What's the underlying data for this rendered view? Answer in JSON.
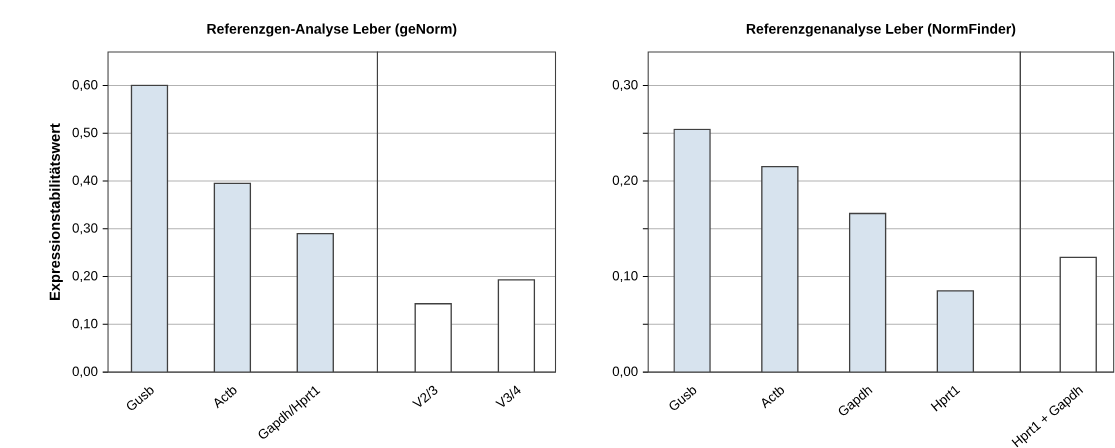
{
  "chart_data": [
    {
      "type": "bar",
      "title": "Referenzgen-Analyse Leber (geNorm)",
      "ylabel": "Expressionstabilitätswert",
      "categories": [
        "Gusb",
        "Actb",
        "Gapdh/Hprt1"
      ],
      "values": [
        0.6,
        0.395,
        0.29
      ],
      "colors": [
        "#d7e3ee",
        "#d7e3ee",
        "#d7e3ee"
      ],
      "ylim": [
        0,
        0.67
      ],
      "yticks": [
        {
          "value": 0,
          "label": "0,00"
        },
        {
          "value": 0.1,
          "label": "0,10"
        },
        {
          "value": 0.2,
          "label": "0,20"
        },
        {
          "value": 0.3,
          "label": "0,30"
        },
        {
          "value": 0.4,
          "label": "0,40"
        },
        {
          "value": 0.5,
          "label": "0,50"
        },
        {
          "value": 0.6,
          "label": "0,60"
        }
      ],
      "grid": "y"
    },
    {
      "type": "bar",
      "categories": [
        "V2/3",
        "V3/4"
      ],
      "values": [
        0.143,
        0.193
      ],
      "colors": [
        "#ffffff",
        "#ffffff"
      ],
      "ylim": [
        0,
        0.67
      ],
      "yticks": [
        0,
        0.1,
        0.2,
        0.3,
        0.4,
        0.5,
        0.6
      ],
      "tick_labels": "x",
      "grid": "y"
    },
    {
      "type": "bar",
      "title": "Referenzgenanalyse Leber (NormFinder)",
      "categories": [
        "Gusb",
        "Actb",
        "Gapdh",
        "Hprt1"
      ],
      "values": [
        0.254,
        0.215,
        0.166,
        0.085
      ],
      "colors": [
        "#d7e3ee",
        "#d7e3ee",
        "#d7e3ee",
        "#d7e3ee"
      ],
      "ylim": [
        0,
        0.335
      ],
      "yticks": [
        {
          "value": 0,
          "label": "0,00"
        },
        {
          "value": 0.05,
          "label": null
        },
        {
          "value": 0.1,
          "label": "0,10"
        },
        {
          "value": 0.15,
          "label": null
        },
        {
          "value": 0.2,
          "label": "0,20"
        },
        {
          "value": 0.25,
          "label": null
        },
        {
          "value": 0.3,
          "label": "0,30"
        }
      ],
      "grid": "y"
    },
    {
      "type": "bar",
      "categories": [
        "Hprt1 + Gapdh"
      ],
      "values": [
        0.12
      ],
      "colors": [
        "#ffffff"
      ],
      "ylim": [
        0,
        0.335
      ],
      "yticks": [
        0,
        0.05,
        0.1,
        0.15,
        0.2,
        0.25,
        0.3
      ],
      "tick_labels": "x",
      "grid": "y"
    }
  ]
}
